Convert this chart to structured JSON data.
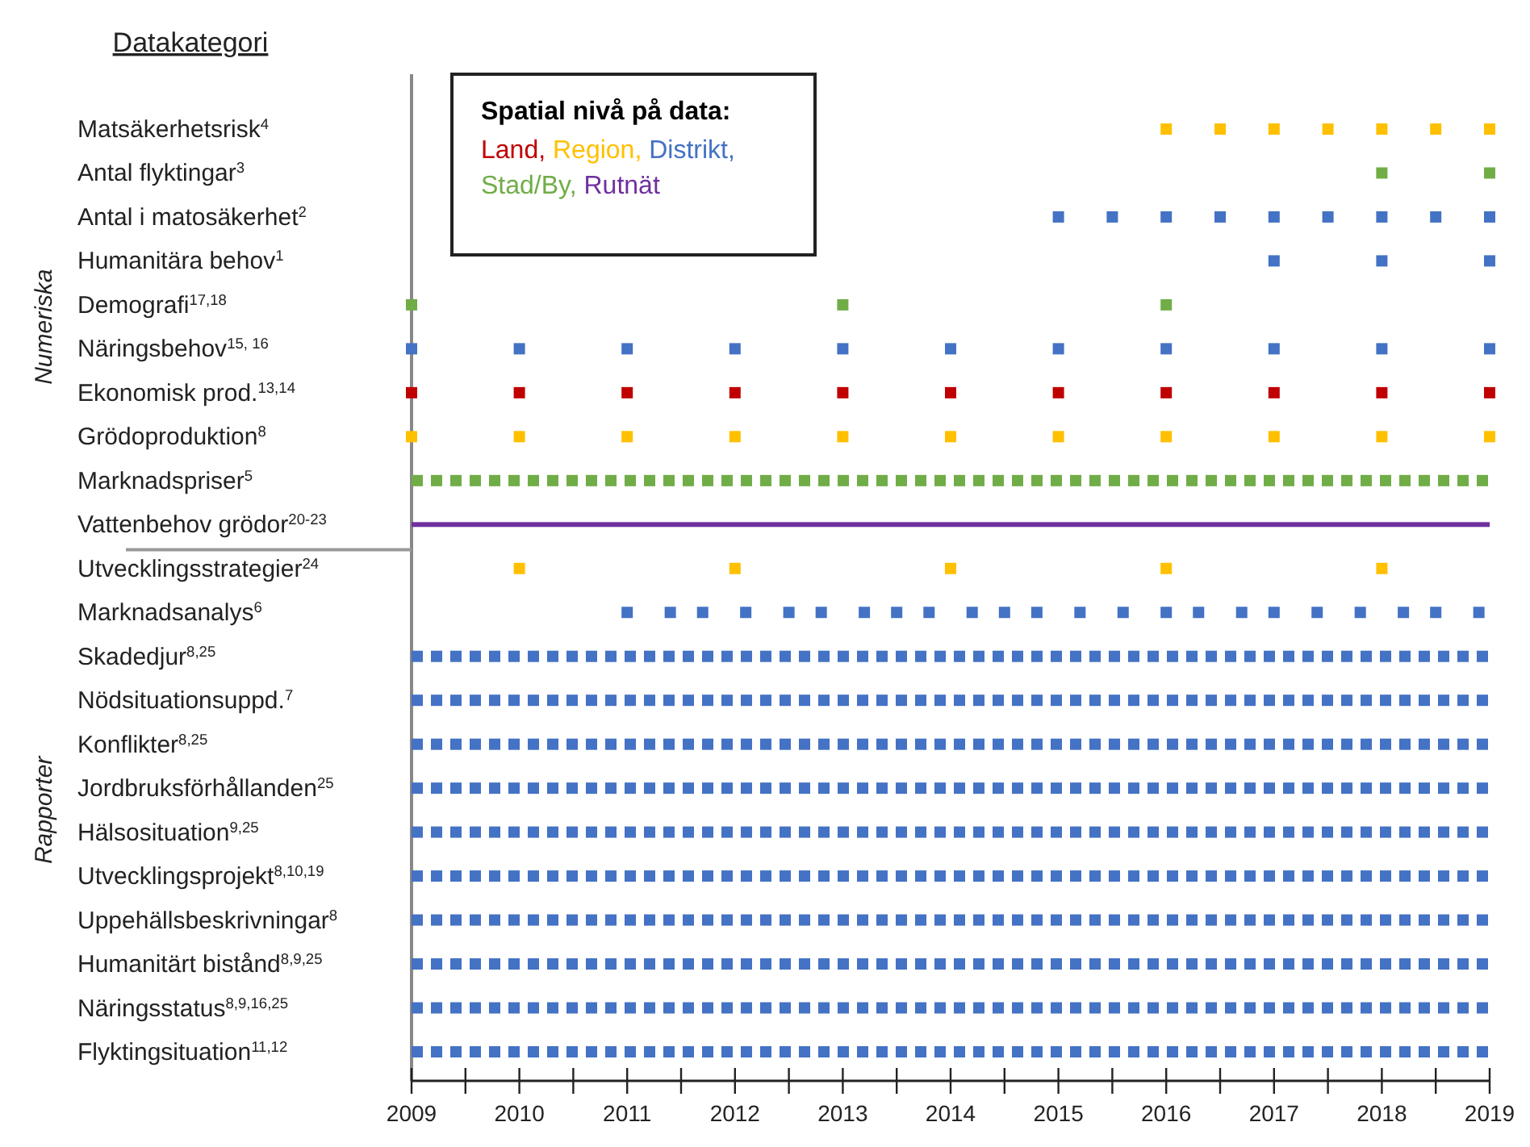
{
  "chart_data": {
    "type": "scatter",
    "orientation": "horizontal",
    "ylabel": "Datakategori",
    "legend_title": "Spatial nivå på data:",
    "legend": "top left",
    "marker": "square",
    "annotations": [
      "Numeriska",
      "Rapporter"
    ],
    "xlim": [
      2009,
      2019
    ],
    "xticks": [
      2009,
      {
        "value": 2009.5,
        "label": null
      },
      2010,
      {
        "value": 2010.5,
        "label": null
      },
      2011,
      {
        "value": 2011.5,
        "label": null
      },
      2012,
      {
        "value": 2012.5,
        "label": null
      },
      2013,
      {
        "value": 2013.5,
        "label": null
      },
      2014,
      {
        "value": 2014.5,
        "label": null
      },
      2015,
      {
        "value": 2015.5,
        "label": null
      },
      2016,
      {
        "value": 2016.5,
        "label": null
      },
      2017,
      {
        "value": 2017.5,
        "label": null
      },
      2018,
      {
        "value": 2018.5,
        "label": null
      },
      2019
    ],
    "categories": [
      "Matsäkerhetsrisk$^{4}$",
      "Antal flyktingar$^{3}$",
      "Antal i matosäkerhet$^{2}$",
      "Humanitära behov$^{1}$",
      "Demografi$^{17,18}$",
      "Näringsbehov$^{15, 16}$",
      "Ekonomisk prod.$^{13,14}$",
      "Grödoproduktion$^{8}$",
      "Marknadspriser$^{5}$",
      "Vattenbehov grödor$^{20-23}$",
      "Utvecklingsstrategier$^{24}$",
      "Marknadsanalys$^{6}$",
      "Skadedjur$^{8,25}$",
      "Nödsituationsuppd.$^{7}$",
      "Konflikter$^{8,25}$",
      "Jordbruksförhållanden$^{25}$",
      "Hälsosituation$^{9,25}$",
      "Utvecklingsprojekt$^{8,10,19}$",
      "Uppehällsbeskrivningar$^{8}$",
      "Humanitärt bistånd$^{8,9,25}$",
      "Näringsstatus$^{8,9,16,25}$",
      "Flyktingsituation$^{11,12}$"
    ],
    "series": [
      {
        "name": "Land,",
        "color": "#c00000",
        "values": [
          null,
          null,
          null,
          null,
          null,
          null,
          2009,
          null,
          null,
          null,
          null,
          null,
          null,
          null,
          null,
          null,
          null,
          null,
          null,
          null,
          null,
          null
        ]
      },
      {
        "color": "#c00000",
        "values": [
          null,
          null,
          null,
          null,
          null,
          null,
          2010,
          null,
          null,
          null,
          null,
          null,
          null,
          null,
          null,
          null,
          null,
          null,
          null,
          null,
          null,
          null
        ]
      },
      {
        "color": "#c00000",
        "values": [
          null,
          null,
          null,
          null,
          null,
          null,
          2011,
          null,
          null,
          null,
          null,
          null,
          null,
          null,
          null,
          null,
          null,
          null,
          null,
          null,
          null,
          null
        ]
      },
      {
        "color": "#c00000",
        "values": [
          null,
          null,
          null,
          null,
          null,
          null,
          2012,
          null,
          null,
          null,
          null,
          null,
          null,
          null,
          null,
          null,
          null,
          null,
          null,
          null,
          null,
          null
        ]
      },
      {
        "color": "#c00000",
        "values": [
          null,
          null,
          null,
          null,
          null,
          null,
          2013,
          null,
          null,
          null,
          null,
          null,
          null,
          null,
          null,
          null,
          null,
          null,
          null,
          null,
          null,
          null
        ]
      },
      {
        "color": "#c00000",
        "values": [
          null,
          null,
          null,
          null,
          null,
          null,
          2014,
          null,
          null,
          null,
          null,
          null,
          null,
          null,
          null,
          null,
          null,
          null,
          null,
          null,
          null,
          null
        ]
      },
      {
        "color": "#c00000",
        "values": [
          null,
          null,
          null,
          null,
          null,
          null,
          2015,
          null,
          null,
          null,
          null,
          null,
          null,
          null,
          null,
          null,
          null,
          null,
          null,
          null,
          null,
          null
        ]
      },
      {
        "color": "#c00000",
        "values": [
          null,
          null,
          null,
          null,
          null,
          null,
          2016,
          null,
          null,
          null,
          null,
          null,
          null,
          null,
          null,
          null,
          null,
          null,
          null,
          null,
          null,
          null
        ]
      },
      {
        "color": "#c00000",
        "values": [
          null,
          null,
          null,
          null,
          null,
          null,
          2017,
          null,
          null,
          null,
          null,
          null,
          null,
          null,
          null,
          null,
          null,
          null,
          null,
          null,
          null,
          null
        ]
      },
      {
        "color": "#c00000",
        "values": [
          null,
          null,
          null,
          null,
          null,
          null,
          2018,
          null,
          null,
          null,
          null,
          null,
          null,
          null,
          null,
          null,
          null,
          null,
          null,
          null,
          null,
          null
        ]
      },
      {
        "color": "#c00000",
        "values": [
          null,
          null,
          null,
          null,
          null,
          null,
          2019,
          null,
          null,
          null,
          null,
          null,
          null,
          null,
          null,
          null,
          null,
          null,
          null,
          null,
          null,
          null
        ]
      },
      {
        "name": "Region,",
        "color": "#ffc000",
        "values": [
          2016,
          null,
          null,
          null,
          null,
          null,
          null,
          2009,
          null,
          null,
          2010,
          null,
          null,
          null,
          null,
          null,
          null,
          null,
          null,
          null,
          null,
          null
        ]
      },
      {
        "color": "#ffc000",
        "values": [
          2016.5,
          null,
          null,
          null,
          null,
          null,
          null,
          2010,
          null,
          null,
          2012,
          null,
          null,
          null,
          null,
          null,
          null,
          null,
          null,
          null,
          null,
          null
        ]
      },
      {
        "color": "#ffc000",
        "values": [
          2017,
          null,
          null,
          null,
          null,
          null,
          null,
          2011,
          null,
          null,
          2014,
          null,
          null,
          null,
          null,
          null,
          null,
          null,
          null,
          null,
          null,
          null
        ]
      },
      {
        "color": "#ffc000",
        "values": [
          2017.5,
          null,
          null,
          null,
          null,
          null,
          null,
          2012,
          null,
          null,
          2016,
          null,
          null,
          null,
          null,
          null,
          null,
          null,
          null,
          null,
          null,
          null
        ]
      },
      {
        "color": "#ffc000",
        "values": [
          2018,
          null,
          null,
          null,
          null,
          null,
          null,
          2013,
          null,
          null,
          2018,
          null,
          null,
          null,
          null,
          null,
          null,
          null,
          null,
          null,
          null,
          null
        ]
      },
      {
        "color": "#ffc000",
        "values": [
          2018.5,
          null,
          null,
          null,
          null,
          null,
          null,
          2014,
          null,
          null,
          null,
          null,
          null,
          null,
          null,
          null,
          null,
          null,
          null,
          null,
          null,
          null
        ]
      },
      {
        "color": "#ffc000",
        "values": [
          2019,
          null,
          null,
          null,
          null,
          null,
          null,
          2015,
          null,
          null,
          null,
          null,
          null,
          null,
          null,
          null,
          null,
          null,
          null,
          null,
          null,
          null
        ]
      },
      {
        "color": "#ffc000",
        "values": [
          null,
          null,
          null,
          null,
          null,
          null,
          null,
          2016,
          null,
          null,
          null,
          null,
          null,
          null,
          null,
          null,
          null,
          null,
          null,
          null,
          null,
          null
        ]
      },
      {
        "color": "#ffc000",
        "values": [
          null,
          null,
          null,
          null,
          null,
          null,
          null,
          2017,
          null,
          null,
          null,
          null,
          null,
          null,
          null,
          null,
          null,
          null,
          null,
          null,
          null,
          null
        ]
      },
      {
        "color": "#ffc000",
        "values": [
          null,
          null,
          null,
          null,
          null,
          null,
          null,
          2018,
          null,
          null,
          null,
          null,
          null,
          null,
          null,
          null,
          null,
          null,
          null,
          null,
          null,
          null
        ]
      },
      {
        "color": "#ffc000",
        "values": [
          null,
          null,
          null,
          null,
          null,
          null,
          null,
          2019,
          null,
          null,
          null,
          null,
          null,
          null,
          null,
          null,
          null,
          null,
          null,
          null,
          null,
          null
        ]
      },
      {
        "name": "Distrikt,",
        "color": "#4472c4",
        "values": [
          null,
          null,
          2015,
          2017,
          null,
          2009,
          null,
          null,
          null,
          null,
          null,
          2011,
          null,
          null,
          null,
          null,
          null,
          null,
          null,
          null,
          null,
          null
        ]
      },
      {
        "color": "#4472c4",
        "values": [
          null,
          null,
          2015.5,
          2018,
          null,
          2010,
          null,
          null,
          null,
          null,
          null,
          2011.4,
          null,
          null,
          null,
          null,
          null,
          null,
          null,
          null,
          null,
          null
        ]
      },
      {
        "color": "#4472c4",
        "values": [
          null,
          null,
          2016,
          2019,
          null,
          2011,
          null,
          null,
          null,
          null,
          null,
          2011.7,
          null,
          null,
          null,
          null,
          null,
          null,
          null,
          null,
          null,
          null
        ]
      },
      {
        "color": "#4472c4",
        "values": [
          null,
          null,
          2016.5,
          null,
          null,
          2012,
          null,
          null,
          null,
          null,
          null,
          2012.1,
          null,
          null,
          null,
          null,
          null,
          null,
          null,
          null,
          null,
          null
        ]
      },
      {
        "color": "#4472c4",
        "values": [
          null,
          null,
          2017,
          null,
          null,
          2013,
          null,
          null,
          null,
          null,
          null,
          2012.5,
          null,
          null,
          null,
          null,
          null,
          null,
          null,
          null,
          null,
          null
        ]
      },
      {
        "color": "#4472c4",
        "values": [
          null,
          null,
          2017.5,
          null,
          null,
          2014,
          null,
          null,
          null,
          null,
          null,
          2012.8,
          null,
          null,
          null,
          null,
          null,
          null,
          null,
          null,
          null,
          null
        ]
      },
      {
        "color": "#4472c4",
        "values": [
          null,
          null,
          2018,
          null,
          null,
          2015,
          null,
          null,
          null,
          null,
          null,
          2013.2,
          null,
          null,
          null,
          null,
          null,
          null,
          null,
          null,
          null,
          null
        ]
      },
      {
        "color": "#4472c4",
        "values": [
          null,
          null,
          2018.5,
          null,
          null,
          2016,
          null,
          null,
          null,
          null,
          null,
          2013.5,
          null,
          null,
          null,
          null,
          null,
          null,
          null,
          null,
          null,
          null
        ]
      },
      {
        "color": "#4472c4",
        "values": [
          null,
          null,
          2019,
          null,
          null,
          2017,
          null,
          null,
          null,
          null,
          null,
          2013.8,
          null,
          null,
          null,
          null,
          null,
          null,
          null,
          null,
          null,
          null
        ]
      },
      {
        "color": "#4472c4",
        "values": [
          null,
          null,
          null,
          null,
          null,
          2018,
          null,
          null,
          null,
          null,
          null,
          2014.2,
          null,
          null,
          null,
          null,
          null,
          null,
          null,
          null,
          null,
          null
        ]
      },
      {
        "color": "#4472c4",
        "values": [
          null,
          null,
          null,
          null,
          null,
          2019,
          null,
          null,
          null,
          null,
          null,
          2014.5,
          null,
          null,
          null,
          null,
          null,
          null,
          null,
          null,
          null,
          null
        ]
      },
      {
        "color": "#4472c4",
        "values": [
          null,
          null,
          null,
          null,
          null,
          null,
          null,
          null,
          null,
          null,
          null,
          2014.8,
          null,
          null,
          null,
          null,
          null,
          null,
          null,
          null,
          null,
          null
        ]
      },
      {
        "color": "#4472c4",
        "values": [
          null,
          null,
          null,
          null,
          null,
          null,
          null,
          null,
          null,
          null,
          null,
          2015.2,
          null,
          null,
          null,
          null,
          null,
          null,
          null,
          null,
          null,
          null
        ]
      },
      {
        "color": "#4472c4",
        "values": [
          null,
          null,
          null,
          null,
          null,
          null,
          null,
          null,
          null,
          null,
          null,
          2015.6,
          null,
          null,
          null,
          null,
          null,
          null,
          null,
          null,
          null,
          null
        ]
      },
      {
        "color": "#4472c4",
        "values": [
          null,
          null,
          null,
          null,
          null,
          null,
          null,
          null,
          null,
          null,
          null,
          2016,
          null,
          null,
          null,
          null,
          null,
          null,
          null,
          null,
          null,
          null
        ]
      },
      {
        "color": "#4472c4",
        "values": [
          null,
          null,
          null,
          null,
          null,
          null,
          null,
          null,
          null,
          null,
          null,
          2016.3,
          null,
          null,
          null,
          null,
          null,
          null,
          null,
          null,
          null,
          null
        ]
      },
      {
        "color": "#4472c4",
        "values": [
          null,
          null,
          null,
          null,
          null,
          null,
          null,
          null,
          null,
          null,
          null,
          2016.7,
          null,
          null,
          null,
          null,
          null,
          null,
          null,
          null,
          null,
          null
        ]
      },
      {
        "color": "#4472c4",
        "values": [
          null,
          null,
          null,
          null,
          null,
          null,
          null,
          null,
          null,
          null,
          null,
          2017,
          null,
          null,
          null,
          null,
          null,
          null,
          null,
          null,
          null,
          null
        ]
      },
      {
        "color": "#4472c4",
        "values": [
          null,
          null,
          null,
          null,
          null,
          null,
          null,
          null,
          null,
          null,
          null,
          2017.4,
          null,
          null,
          null,
          null,
          null,
          null,
          null,
          null,
          null,
          null
        ]
      },
      {
        "color": "#4472c4",
        "values": [
          null,
          null,
          null,
          null,
          null,
          null,
          null,
          null,
          null,
          null,
          null,
          2017.8,
          null,
          null,
          null,
          null,
          null,
          null,
          null,
          null,
          null,
          null
        ]
      },
      {
        "color": "#4472c4",
        "values": [
          null,
          null,
          null,
          null,
          null,
          null,
          null,
          null,
          null,
          null,
          null,
          2018.2,
          null,
          null,
          null,
          null,
          null,
          null,
          null,
          null,
          null,
          null
        ]
      },
      {
        "color": "#4472c4",
        "values": [
          null,
          null,
          null,
          null,
          null,
          null,
          null,
          null,
          null,
          null,
          null,
          2018.5,
          null,
          null,
          null,
          null,
          null,
          null,
          null,
          null,
          null,
          null
        ]
      },
      {
        "color": "#4472c4",
        "values": [
          null,
          null,
          null,
          null,
          null,
          null,
          null,
          null,
          null,
          null,
          null,
          2018.9,
          null,
          null,
          null,
          null,
          null,
          null,
          null,
          null,
          null,
          null
        ]
      },
      {
        "name": "Stad/By,",
        "color": "#70ad47",
        "values": [
          null,
          2018,
          null,
          null,
          2009,
          null,
          null,
          null,
          null,
          null,
          null,
          null,
          null,
          null,
          null,
          null,
          null,
          null,
          null,
          null,
          null,
          null
        ]
      },
      {
        "color": "#70ad47",
        "values": [
          null,
          2019,
          null,
          null,
          2013,
          null,
          null,
          null,
          null,
          null,
          null,
          null,
          null,
          null,
          null,
          null,
          null,
          null,
          null,
          null,
          null,
          null
        ]
      },
      {
        "color": "#70ad47",
        "values": [
          null,
          null,
          null,
          null,
          2016,
          null,
          null,
          null,
          null,
          null,
          null,
          null,
          null,
          null,
          null,
          null,
          null,
          null,
          null,
          null,
          null,
          null
        ]
      },
      {
        "name": "Rutnät",
        "type": "bar",
        "line_style": "solid",
        "color": "#7030a0",
        "base": [
          null,
          null,
          null,
          null,
          null,
          null,
          null,
          null,
          null,
          2009,
          null,
          null,
          null,
          null,
          null,
          null,
          null,
          null,
          null,
          null,
          null,
          null
        ],
        "values": [
          null,
          null,
          null,
          null,
          null,
          null,
          null,
          null,
          null,
          10,
          null,
          null,
          null,
          null,
          null,
          null,
          null,
          null,
          null,
          null,
          null,
          null
        ]
      },
      {
        "type": "bar",
        "line_style": "dashed",
        "color": "#70ad47",
        "base": [
          null,
          null,
          null,
          null,
          null,
          null,
          null,
          null,
          2009,
          null,
          null,
          null,
          null,
          null,
          null,
          null,
          null,
          null,
          null,
          null,
          null,
          null
        ],
        "values": [
          null,
          null,
          null,
          null,
          null,
          null,
          null,
          null,
          10,
          null,
          null,
          null,
          null,
          null,
          null,
          null,
          null,
          null,
          null,
          null,
          null,
          null
        ]
      },
      {
        "type": "bar",
        "line_style": "dashed",
        "color": "#4472c4",
        "base": [
          null,
          null,
          null,
          null,
          null,
          null,
          null,
          null,
          null,
          null,
          null,
          null,
          2009,
          2009,
          2009,
          2009,
          2009,
          2009,
          2009,
          2009,
          2009,
          2009
        ],
        "values": [
          null,
          null,
          null,
          null,
          null,
          null,
          null,
          null,
          null,
          null,
          null,
          null,
          10,
          10,
          10,
          10,
          10,
          10,
          10,
          10,
          10,
          10
        ]
      }
    ]
  }
}
